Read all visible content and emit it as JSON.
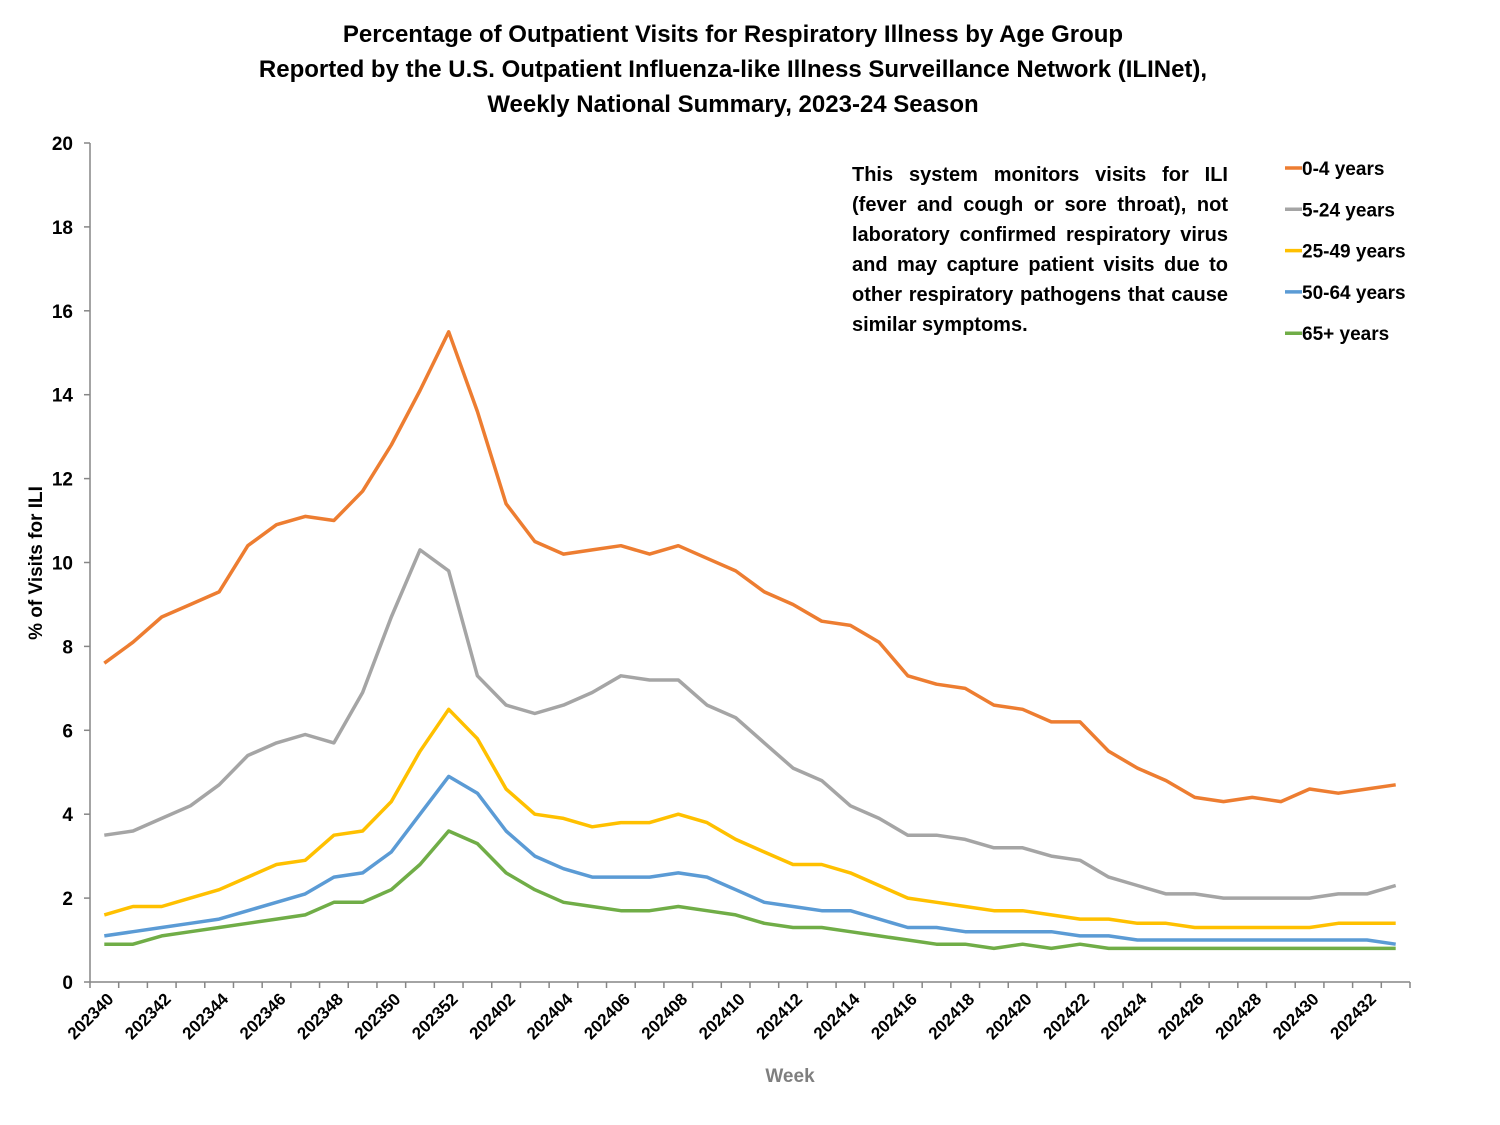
{
  "chart_data": {
    "type": "line",
    "title": [
      "Percentage of Outpatient Visits for Respiratory Illness by Age Group",
      "Reported by the U.S. Outpatient Influenza-like Illness Surveillance Network (ILINet),",
      "Weekly National Summary, 2023-24 Season"
    ],
    "annotation": "This system monitors visits for ILI (fever and cough or sore throat), not laboratory confirmed respiratory virus and may capture patient visits due to other respiratory pathogens that cause similar symptoms.",
    "x_label": "Week",
    "y_label": "% of Visits for ILI",
    "categories": [
      "202340",
      null,
      "202342",
      null,
      "202344",
      null,
      "202346",
      null,
      "202348",
      null,
      "202350",
      null,
      "202352",
      null,
      "202402",
      null,
      "202404",
      null,
      "202406",
      null,
      "202408",
      null,
      "202410",
      null,
      "202412",
      null,
      "202414",
      null,
      "202416",
      null,
      "202418",
      null,
      "202420",
      null,
      "202422",
      null,
      "202424",
      null,
      "202426",
      null,
      "202428",
      null,
      "202430",
      null,
      "202432",
      null
    ],
    "series": [
      {
        "name": "0-4 years",
        "color": "#ed7d31",
        "values": [
          7.6,
          8.1,
          8.7,
          9.0,
          9.3,
          10.4,
          10.9,
          11.1,
          11.0,
          11.7,
          12.8,
          14.1,
          15.5,
          13.6,
          11.4,
          10.5,
          10.2,
          10.3,
          10.4,
          10.2,
          10.4,
          10.1,
          9.8,
          9.3,
          9.0,
          8.6,
          8.5,
          8.1,
          7.3,
          7.1,
          7.0,
          6.6,
          6.5,
          6.2,
          6.2,
          5.5,
          5.1,
          4.8,
          4.4,
          4.3,
          4.4,
          4.3,
          4.6,
          4.5,
          4.6,
          4.7
        ]
      },
      {
        "name": "5-24 years",
        "color": "#a5a5a5",
        "values": [
          3.5,
          3.6,
          3.9,
          4.2,
          4.7,
          5.4,
          5.7,
          5.9,
          5.7,
          6.9,
          8.7,
          10.3,
          9.8,
          7.3,
          6.6,
          6.4,
          6.6,
          6.9,
          7.3,
          7.2,
          7.2,
          6.6,
          6.3,
          5.7,
          5.1,
          4.8,
          4.2,
          3.9,
          3.5,
          3.5,
          3.4,
          3.2,
          3.2,
          3.0,
          2.9,
          2.5,
          2.3,
          2.1,
          2.1,
          2.0,
          2.0,
          2.0,
          2.0,
          2.1,
          2.1,
          2.3
        ]
      },
      {
        "name": "25-49 years",
        "color": "#ffc000",
        "values": [
          1.6,
          1.8,
          1.8,
          2.0,
          2.2,
          2.5,
          2.8,
          2.9,
          3.5,
          3.6,
          4.3,
          5.5,
          6.5,
          5.8,
          4.6,
          4.0,
          3.9,
          3.7,
          3.8,
          3.8,
          4.0,
          3.8,
          3.4,
          3.1,
          2.8,
          2.8,
          2.6,
          2.3,
          2.0,
          1.9,
          1.8,
          1.7,
          1.7,
          1.6,
          1.5,
          1.5,
          1.4,
          1.4,
          1.3,
          1.3,
          1.3,
          1.3,
          1.3,
          1.4,
          1.4,
          1.4
        ]
      },
      {
        "name": "50-64 years",
        "color": "#5b9bd5",
        "values": [
          1.1,
          1.2,
          1.3,
          1.4,
          1.5,
          1.7,
          1.9,
          2.1,
          2.5,
          2.6,
          3.1,
          4.0,
          4.9,
          4.5,
          3.6,
          3.0,
          2.7,
          2.5,
          2.5,
          2.5,
          2.6,
          2.5,
          2.2,
          1.9,
          1.8,
          1.7,
          1.7,
          1.5,
          1.3,
          1.3,
          1.2,
          1.2,
          1.2,
          1.2,
          1.1,
          1.1,
          1.0,
          1.0,
          1.0,
          1.0,
          1.0,
          1.0,
          1.0,
          1.0,
          1.0,
          0.9
        ]
      },
      {
        "name": "65+ years",
        "color": "#70ad47",
        "values": [
          0.9,
          0.9,
          1.1,
          1.2,
          1.3,
          1.4,
          1.5,
          1.6,
          1.9,
          1.9,
          2.2,
          2.8,
          3.6,
          3.3,
          2.6,
          2.2,
          1.9,
          1.8,
          1.7,
          1.7,
          1.8,
          1.7,
          1.6,
          1.4,
          1.3,
          1.3,
          1.2,
          1.1,
          1.0,
          0.9,
          0.9,
          0.8,
          0.9,
          0.8,
          0.9,
          0.8,
          0.8,
          0.8,
          0.8,
          0.8,
          0.8,
          0.8,
          0.8,
          0.8,
          0.8,
          0.8
        ]
      }
    ],
    "ylim": [
      0,
      20
    ],
    "yticks": [
      0,
      2,
      4,
      6,
      8,
      10,
      12,
      14,
      16,
      18,
      20
    ],
    "grid": false,
    "legend": "right"
  }
}
